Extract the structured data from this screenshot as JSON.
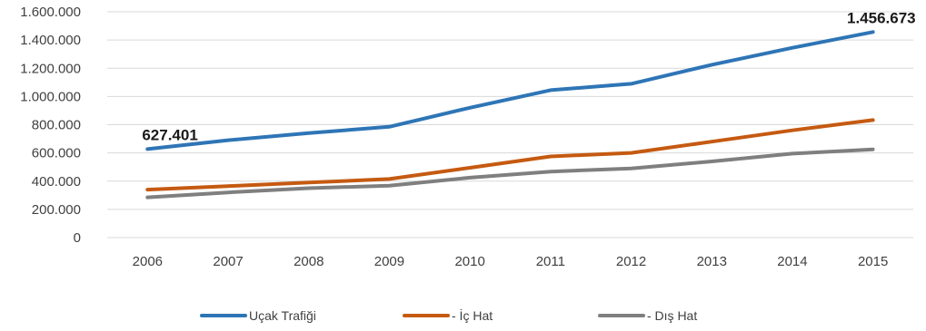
{
  "chart_data": {
    "type": "line",
    "title": "",
    "xlabel": "",
    "ylabel": "",
    "x": [
      "2006",
      "2007",
      "2008",
      "2009",
      "2010",
      "2011",
      "2012",
      "2013",
      "2014",
      "2015"
    ],
    "ylim": [
      0,
      1600000
    ],
    "yticks": [
      0,
      200000,
      400000,
      600000,
      800000,
      1000000,
      1200000,
      1400000,
      1600000
    ],
    "ytick_labels": [
      "0",
      "200.000",
      "400.000",
      "600.000",
      "800.000",
      "1.000.000",
      "1.200.000",
      "1.400.000",
      "1.600.000"
    ],
    "grid": true,
    "legend_position": "bottom",
    "series": [
      {
        "name": "Uçak Trafiği",
        "color": "#2E75B6",
        "values": [
          627401,
          690000,
          740000,
          785000,
          920000,
          1045000,
          1090000,
          1225000,
          1345000,
          1456673
        ]
      },
      {
        "name": "- İç Hat",
        "color": "#C55A11",
        "values": [
          340000,
          365000,
          390000,
          415000,
          495000,
          575000,
          600000,
          680000,
          760000,
          833000
        ]
      },
      {
        "name": "- Dış Hat",
        "color": "#7F7F7F",
        "values": [
          285000,
          320000,
          350000,
          368000,
          425000,
          468000,
          490000,
          540000,
          595000,
          625000
        ]
      }
    ],
    "annotations": [
      {
        "series": 0,
        "index": 0,
        "text": "627.401"
      },
      {
        "series": 0,
        "index": 9,
        "text": "1.456.673"
      }
    ]
  }
}
